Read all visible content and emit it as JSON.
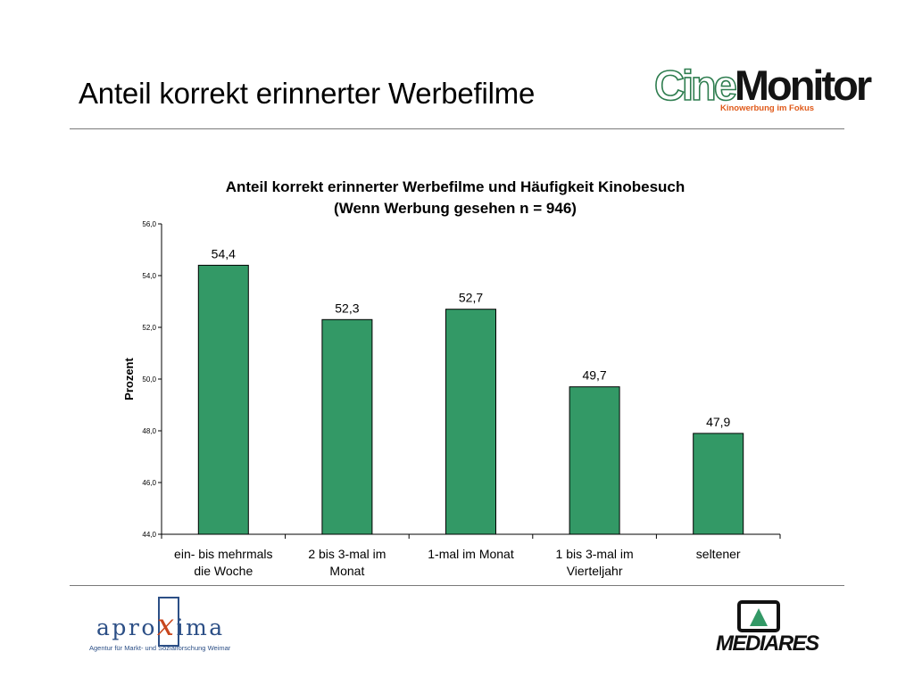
{
  "slide": {
    "title": "Anteil korrekt erinnerter Werbefilme"
  },
  "logos": {
    "cinemonitor": {
      "part1": "Cine",
      "part2": "Monitor",
      "tagline": "Kinowerbung im Fokus"
    },
    "aproxima": {
      "pre": "apro",
      "x": "x",
      "post": "ima",
      "subtitle": "Agentur für Markt- und Sozialforschung Weimar"
    },
    "mediares": {
      "name": "MEDIARES"
    }
  },
  "colors": {
    "bar": "#339966",
    "bar_stroke": "#000000",
    "rule": "#7a7a7a",
    "cine_green": "#2e7d4f",
    "cine_orange": "#e05a1a",
    "apro_blue": "#2c4f86",
    "apro_orange": "#c8461c"
  },
  "chart_data": {
    "type": "bar",
    "title": "Anteil korrekt erinnerter Werbefilme und Häufigkeit Kinobesuch",
    "subtitle": "(Wenn Werbung gesehen n = 946)",
    "xlabel": "",
    "ylabel": "Prozent",
    "ylim": [
      44.0,
      56.0
    ],
    "yticks": [
      44.0,
      46.0,
      48.0,
      50.0,
      52.0,
      54.0,
      56.0
    ],
    "ytick_labels": [
      "44,0",
      "46,0",
      "48,0",
      "50,0",
      "52,0",
      "54,0",
      "56,0"
    ],
    "categories": [
      [
        "ein- bis mehrmals",
        "die Woche"
      ],
      [
        "2 bis 3-mal im",
        "Monat"
      ],
      [
        "1-mal im Monat"
      ],
      [
        "1 bis 3-mal im",
        "Vierteljahr"
      ],
      [
        "seltener"
      ]
    ],
    "values": [
      54.4,
      52.3,
      52.7,
      49.7,
      47.9
    ],
    "value_labels": [
      "54,4",
      "52,3",
      "52,7",
      "49,7",
      "47,9"
    ],
    "grid": false,
    "legend": "none"
  }
}
